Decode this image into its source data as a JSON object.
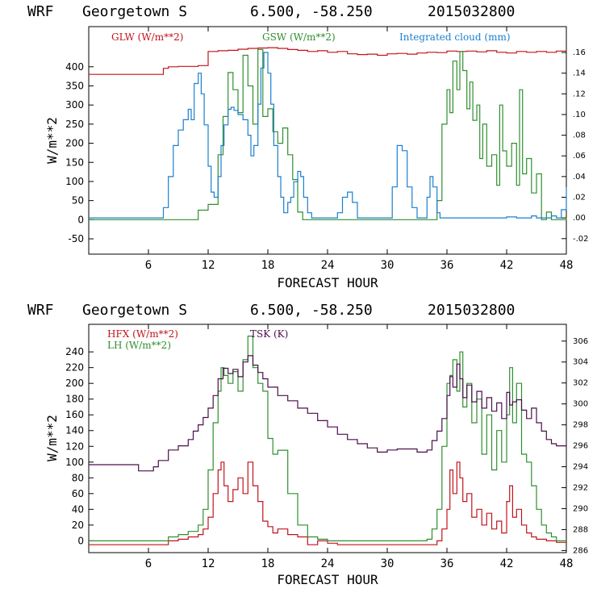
{
  "chart_data": [
    {
      "type": "line",
      "header": {
        "model": "WRF",
        "location": "Georgetown S",
        "coords": "6.500, -58.250",
        "init": "2015032800"
      },
      "xlabel": "FORECAST HOUR",
      "ylabel": "W/m**2",
      "xlim": [
        0,
        48
      ],
      "ylim": [
        -90,
        505
      ],
      "y2lim": [
        -0.035,
        0.185
      ],
      "xticks": [
        6,
        12,
        18,
        24,
        30,
        36,
        42,
        48
      ],
      "xtick_labels": [
        "6",
        "12",
        "18",
        "24",
        "30",
        "36",
        "42",
        "48"
      ],
      "yticks": [
        -50,
        0,
        50,
        100,
        150,
        200,
        250,
        300,
        350,
        400
      ],
      "ytick_labels": [
        "-50",
        "0",
        "50",
        "100",
        "150",
        "200",
        "250",
        "300",
        "350",
        "400"
      ],
      "y2ticks": [
        -0.02,
        0,
        0.02,
        0.04,
        0.06,
        0.08,
        0.1,
        0.12,
        0.14,
        0.16
      ],
      "y2tick_labels": [
        "-.02",
        ".00",
        ".02",
        ".04",
        ".06",
        ".08",
        ".10",
        ".12",
        ".14",
        ".16"
      ],
      "series": [
        {
          "name": "GLW (W/m**2)",
          "color": "#c0141c",
          "axis": "left",
          "x": [
            0,
            6,
            7,
            7.5,
            8,
            9,
            10,
            11,
            12,
            13,
            14,
            15,
            16,
            17,
            18,
            19,
            20,
            21,
            22,
            23,
            24,
            25,
            26,
            27,
            28,
            29,
            30,
            31,
            32,
            33,
            34,
            35,
            36,
            37,
            38,
            39,
            40,
            41,
            42,
            43,
            44,
            45,
            46,
            47,
            48
          ],
          "y": [
            380,
            380,
            380,
            396,
            400,
            401,
            401,
            403,
            440,
            442,
            443,
            446,
            448,
            449,
            450,
            448,
            445,
            443,
            440,
            442,
            438,
            440,
            434,
            432,
            433,
            430,
            434,
            435,
            433,
            436,
            438,
            437,
            441,
            440,
            441,
            439,
            442,
            438,
            436,
            440,
            438,
            440,
            438,
            441,
            440
          ]
        },
        {
          "name": "GSW (W/m**2)",
          "color": "#2f8f2f",
          "axis": "left",
          "x": [
            0,
            10,
            11,
            12,
            13,
            13.5,
            14,
            14.5,
            15,
            15.5,
            16,
            16.5,
            17,
            17.5,
            18,
            18.5,
            19,
            19.5,
            20,
            20.5,
            21,
            21.5,
            22,
            23,
            24,
            33,
            34.5,
            35,
            35.5,
            36,
            36.3,
            36.6,
            37,
            37.3,
            37.6,
            38,
            38.3,
            38.6,
            39,
            39.3,
            39.6,
            40,
            40.5,
            41,
            41.3,
            41.6,
            42,
            42.5,
            43,
            43.3,
            43.6,
            44,
            44.5,
            45,
            45.5,
            46,
            46.5,
            47,
            48
          ],
          "y": [
            0,
            0,
            25,
            40,
            170,
            270,
            385,
            340,
            280,
            430,
            350,
            250,
            445,
            270,
            290,
            230,
            200,
            240,
            170,
            105,
            20,
            0,
            0,
            0,
            0,
            0,
            0,
            50,
            250,
            340,
            280,
            415,
            340,
            440,
            390,
            290,
            360,
            260,
            300,
            160,
            250,
            140,
            170,
            90,
            300,
            180,
            140,
            200,
            90,
            340,
            120,
            160,
            70,
            120,
            0,
            20,
            0,
            0,
            5
          ]
        },
        {
          "name": "Integrated cloud (mm)",
          "color": "#1a7fcf",
          "axis": "right",
          "x": [
            0,
            7,
            7.5,
            8,
            8.5,
            9,
            9.5,
            10,
            10.3,
            10.6,
            11,
            11.3,
            11.6,
            12,
            12.3,
            12.6,
            13,
            13.3,
            13.6,
            14,
            14.3,
            14.6,
            15,
            15.5,
            16,
            16.3,
            16.6,
            17,
            17.3,
            17.6,
            18,
            18.3,
            18.6,
            19,
            19.3,
            19.6,
            20,
            20.3,
            20.6,
            21,
            21.3,
            21.6,
            22,
            22.4,
            23,
            24,
            25,
            25.5,
            26,
            26.5,
            27,
            30,
            30.5,
            31,
            31.5,
            32,
            32.5,
            33,
            33.5,
            34,
            34.3,
            34.6,
            35,
            35.3,
            36,
            41,
            42,
            43,
            44,
            44.5,
            45,
            45.5,
            46,
            46.5,
            47,
            47.5,
            48
          ],
          "y": [
            0,
            0,
            0.01,
            0.04,
            0.07,
            0.085,
            0.095,
            0.105,
            0.095,
            0.13,
            0.14,
            0.12,
            0.09,
            0.05,
            0.025,
            0.02,
            0.04,
            0.07,
            0.09,
            0.105,
            0.107,
            0.104,
            0.1,
            0.095,
            0.08,
            0.06,
            0.07,
            0.11,
            0.145,
            0.16,
            0.14,
            0.11,
            0.07,
            0.04,
            0.02,
            0.005,
            0.015,
            0.02,
            0.035,
            0.045,
            0.04,
            0.02,
            0.005,
            0,
            0,
            0,
            0.005,
            0.02,
            0.025,
            0.015,
            0,
            0,
            0.03,
            0.07,
            0.065,
            0.03,
            0.01,
            0,
            0,
            0.02,
            0.04,
            0.03,
            0.005,
            0,
            0,
            0,
            0.001,
            0,
            0,
            0.002,
            0,
            0,
            0,
            0.002,
            0,
            0.008,
            0.03
          ]
        }
      ]
    },
    {
      "type": "line",
      "header": {
        "model": "WRF",
        "location": "Georgetown S",
        "coords": "6.500, -58.250",
        "init": "2015032800"
      },
      "xlabel": "FORECAST HOUR",
      "ylabel": "W/m**2",
      "xlim": [
        0,
        48
      ],
      "ylim": [
        -15,
        275
      ],
      "y2lim": [
        285.8,
        307.6
      ],
      "xticks": [
        6,
        12,
        18,
        24,
        30,
        36,
        42,
        48
      ],
      "xtick_labels": [
        "6",
        "12",
        "18",
        "24",
        "30",
        "36",
        "42",
        "48"
      ],
      "yticks": [
        0,
        20,
        40,
        60,
        80,
        100,
        120,
        140,
        160,
        180,
        200,
        220,
        240
      ],
      "ytick_labels": [
        "0",
        "20",
        "40",
        "60",
        "80",
        "100",
        "120",
        "140",
        "160",
        "180",
        "200",
        "220",
        "240"
      ],
      "y2ticks": [
        286,
        288,
        290,
        292,
        294,
        296,
        298,
        300,
        302,
        304,
        306
      ],
      "y2tick_labels": [
        "286",
        "288",
        "290",
        "292",
        "294",
        "296",
        "298",
        "300",
        "302",
        "304",
        "306"
      ],
      "series": [
        {
          "name": "HFX (W/m**2)",
          "color": "#c0141c",
          "axis": "left",
          "x": [
            0,
            7,
            8,
            9,
            10,
            11,
            11.5,
            12,
            12.5,
            13,
            13.3,
            13.6,
            14,
            14.5,
            15,
            15.5,
            16,
            16.5,
            17,
            17.5,
            18,
            18.5,
            19,
            20,
            21,
            22,
            23,
            24,
            25,
            30,
            34,
            35,
            35.5,
            36,
            36.3,
            36.6,
            37,
            37.3,
            37.6,
            38,
            38.5,
            39,
            39.5,
            40,
            40.5,
            41,
            41.5,
            42,
            42.3,
            42.6,
            43,
            43.5,
            44,
            44.5,
            45,
            46,
            47,
            48
          ],
          "y": [
            -5,
            -5,
            0,
            2,
            5,
            8,
            15,
            30,
            60,
            90,
            100,
            70,
            50,
            65,
            80,
            60,
            100,
            70,
            50,
            25,
            18,
            10,
            15,
            8,
            5,
            -5,
            0,
            -3,
            -5,
            -5,
            -5,
            0,
            15,
            40,
            90,
            60,
            100,
            80,
            50,
            60,
            30,
            40,
            20,
            35,
            15,
            25,
            10,
            50,
            70,
            30,
            40,
            20,
            10,
            5,
            2,
            0,
            -2,
            -2
          ]
        },
        {
          "name": "LH (W/m**2)",
          "color": "#2f8f2f",
          "axis": "left",
          "x": [
            0,
            7,
            8,
            9,
            10,
            11,
            11.5,
            12,
            12.5,
            13,
            13.3,
            13.6,
            14,
            14.5,
            15,
            15.5,
            16,
            16.5,
            17,
            17.5,
            18,
            18.5,
            19,
            20,
            21,
            22,
            23,
            24,
            30,
            34,
            34.5,
            35,
            35.5,
            36,
            36.3,
            36.6,
            37,
            37.3,
            37.6,
            38,
            38.5,
            39,
            39.5,
            40,
            40.5,
            41,
            41.5,
            42,
            42.3,
            42.6,
            43,
            43.5,
            44,
            44.5,
            45,
            45.5,
            46,
            46.5,
            47,
            48
          ],
          "y": [
            0,
            0,
            5,
            8,
            12,
            20,
            40,
            90,
            150,
            190,
            220,
            210,
            200,
            215,
            190,
            230,
            260,
            220,
            200,
            190,
            130,
            110,
            115,
            60,
            20,
            5,
            2,
            0,
            0,
            2,
            15,
            40,
            120,
            200,
            210,
            230,
            190,
            240,
            170,
            200,
            150,
            180,
            110,
            160,
            90,
            140,
            100,
            160,
            220,
            150,
            200,
            110,
            100,
            70,
            40,
            20,
            10,
            5,
            0,
            0
          ]
        },
        {
          "name": "TSK (K)",
          "color": "#4a0f4a",
          "axis": "right",
          "x": [
            0,
            5,
            6,
            6.5,
            7,
            8,
            9,
            10,
            10.5,
            11,
            11.5,
            12,
            12.5,
            13,
            13.5,
            14,
            14.5,
            15,
            15.5,
            16,
            16.5,
            17,
            17.5,
            18,
            19,
            20,
            21,
            22,
            23,
            24,
            25,
            26,
            27,
            28,
            29,
            30,
            31,
            32,
            33,
            34,
            34.5,
            35,
            35.5,
            36,
            36.3,
            36.6,
            37,
            37.3,
            37.6,
            38,
            38.5,
            39,
            39.5,
            40,
            40.5,
            41,
            41.5,
            42,
            42.3,
            42.6,
            43,
            43.5,
            44,
            44.5,
            45,
            45.5,
            46,
            46.5,
            47,
            48
          ],
          "y": [
            294.2,
            293.6,
            293.6,
            294,
            294.6,
            295.6,
            296,
            296.6,
            297.4,
            298,
            298.7,
            299.6,
            300.8,
            302.4,
            303.4,
            302.9,
            303.3,
            302.6,
            304,
            304.6,
            303.7,
            303,
            302.4,
            301.6,
            300.8,
            300.3,
            299.6,
            299.1,
            298.4,
            297.8,
            297.1,
            296.6,
            296.2,
            295.8,
            295.4,
            295.6,
            295.7,
            295.7,
            295.4,
            295.6,
            296.5,
            297.4,
            298.6,
            300.8,
            302.6,
            301.6,
            303.8,
            302.4,
            300.6,
            301.8,
            300.2,
            301.2,
            299.6,
            300.6,
            299.3,
            300.1,
            298.6,
            301.1,
            299.9,
            300.2,
            300.4,
            299.4,
            298.6,
            299.6,
            298.2,
            297.4,
            296.6,
            296.2,
            296,
            295.9
          ]
        }
      ]
    }
  ]
}
